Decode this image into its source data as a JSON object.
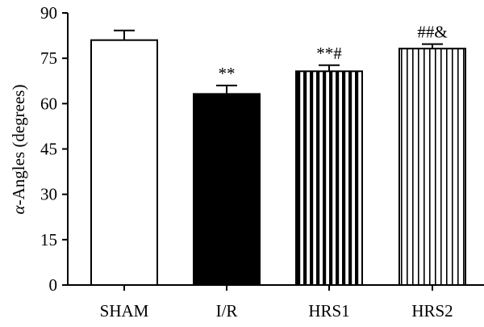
{
  "chart_data": {
    "type": "bar",
    "categories": [
      "SHAM",
      "I/R",
      "HRS1",
      "HRS2"
    ],
    "values": [
      81,
      63.2,
      70.7,
      78.2
    ],
    "errors": [
      3.2,
      2.8,
      2.0,
      1.5
    ],
    "annotations": [
      "",
      "**",
      "**#",
      "##&"
    ],
    "ylabel_prefix": "α",
    "ylabel": "-Angles (degrees)",
    "ylim": [
      0,
      90
    ],
    "yticks": [
      0,
      15,
      30,
      45,
      60,
      75,
      90
    ],
    "bar_styles": [
      "white",
      "solid-black",
      "thick-vertical-stripes",
      "thin-vertical-stripes"
    ],
    "grid": false,
    "legend": "none"
  }
}
